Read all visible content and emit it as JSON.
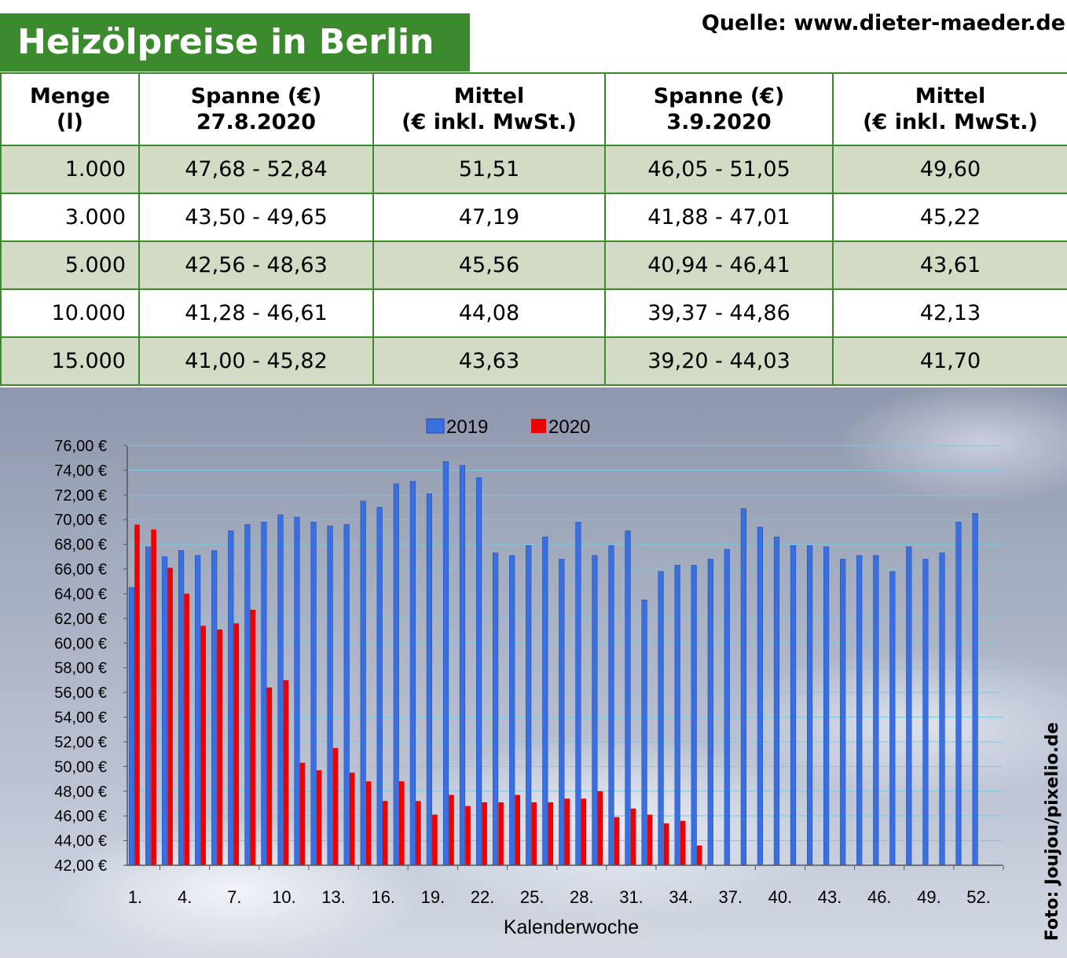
{
  "header": {
    "title": "Heizölpreise in Berlin",
    "source": "Quelle: www.dieter-maeder.de"
  },
  "table": {
    "headers": [
      [
        "Menge",
        "(l)"
      ],
      [
        "Spanne (€)",
        "27.8.2020"
      ],
      [
        "Mittel",
        "(€ inkl. MwSt.)"
      ],
      [
        "Spanne (€)",
        "3.9.2020"
      ],
      [
        "Mittel",
        "(€ inkl. MwSt.)"
      ]
    ],
    "rows": [
      [
        "1.000",
        "47,68 - 52,84",
        "51,51",
        "46,05 - 51,05",
        "49,60"
      ],
      [
        "3.000",
        "43,50 - 49,65",
        "47,19",
        "41,88 - 47,01",
        "45,22"
      ],
      [
        "5.000",
        "42,56 - 48,63",
        "45,56",
        "40,94 - 46,41",
        "43,61"
      ],
      [
        "10.000",
        "41,28 - 46,61",
        "44,08",
        "39,37 - 44,86",
        "42,13"
      ],
      [
        "15.000",
        "41,00 - 45,82",
        "43,63",
        "39,20 - 44,03",
        "41,70"
      ]
    ]
  },
  "colors": {
    "header_green": "#3b8a2e",
    "row_shade": "#d2dbc4",
    "series_2019": "#3a6fe0",
    "series_2020": "#ee0000"
  },
  "chart_data": {
    "type": "bar",
    "xlabel": "Kalenderwoche",
    "ylabel": "",
    "ylim": [
      42,
      76
    ],
    "y_ticks": [
      "42,00 €",
      "44,00 €",
      "46,00 €",
      "48,00 €",
      "50,00 €",
      "52,00 €",
      "54,00 €",
      "56,00 €",
      "58,00 €",
      "60,00 €",
      "62,00 €",
      "64,00 €",
      "66,00 €",
      "68,00 €",
      "70,00 €",
      "72,00 €",
      "74,00 €",
      "76,00 €"
    ],
    "x_tick_labels": [
      "1.",
      "4.",
      "7.",
      "10.",
      "13.",
      "16.",
      "19.",
      "22.",
      "25.",
      "28.",
      "31.",
      "34.",
      "37.",
      "40.",
      "43.",
      "46.",
      "49.",
      "52."
    ],
    "x_tick_weeks": [
      1,
      4,
      7,
      10,
      13,
      16,
      19,
      22,
      25,
      28,
      31,
      34,
      37,
      40,
      43,
      46,
      49,
      52
    ],
    "grid": true,
    "legend_position": "top-center",
    "series": [
      {
        "name": "2019",
        "values": [
          64.5,
          67.8,
          67.0,
          67.5,
          67.1,
          67.5,
          69.1,
          69.6,
          69.8,
          70.4,
          70.2,
          69.8,
          69.5,
          69.6,
          71.5,
          71.0,
          72.9,
          73.1,
          72.1,
          74.7,
          74.4,
          73.4,
          67.3,
          67.1,
          67.9,
          68.6,
          66.8,
          69.8,
          67.1,
          67.9,
          69.1,
          63.5,
          65.8,
          66.3,
          66.3,
          66.8,
          67.6,
          70.9,
          69.4,
          68.6,
          67.9,
          67.9,
          67.8,
          66.8,
          67.1,
          67.1,
          65.8,
          67.8,
          66.8,
          67.3,
          69.8,
          70.5
        ]
      },
      {
        "name": "2020",
        "values": [
          69.6,
          69.2,
          66.1,
          64.0,
          61.4,
          61.1,
          61.6,
          62.7,
          56.4,
          57.0,
          50.3,
          49.7,
          51.5,
          49.5,
          48.8,
          47.2,
          48.8,
          47.2,
          46.1,
          47.7,
          46.8,
          47.1,
          47.1,
          47.7,
          47.1,
          47.1,
          47.4,
          47.4,
          48.0,
          45.9,
          46.6,
          46.1,
          45.4,
          45.6,
          43.6
        ]
      }
    ]
  },
  "credit": "Foto: Joujou/pixelio.de"
}
